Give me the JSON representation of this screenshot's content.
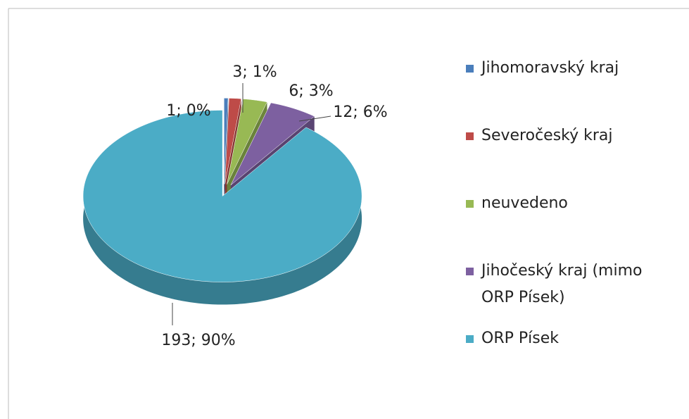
{
  "chart_data": {
    "type": "pie3d",
    "categories": [
      "Jihomoravský kraj",
      "Severočeský kraj",
      "neuvedeno",
      "Jihočeský kraj (mimo ORP Písek)",
      "ORP Písek"
    ],
    "values": [
      1,
      3,
      6,
      12,
      193
    ],
    "value_labels": [
      "1; 0%",
      "3; 1%",
      "6; 3%",
      "12; 6%",
      "193; 90%"
    ],
    "colors": [
      "#4a7ebb",
      "#be4b48",
      "#98b954",
      "#7d60a0",
      "#4bacc6"
    ],
    "legend": "right"
  }
}
